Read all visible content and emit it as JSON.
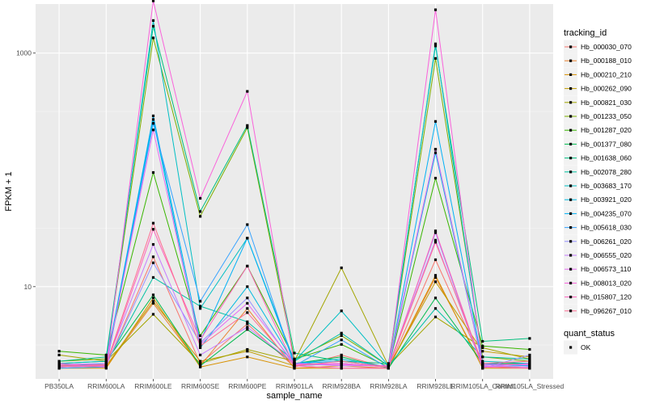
{
  "chart_data": {
    "type": "line",
    "xlabel": "sample_name",
    "ylabel": "FPKM + 1",
    "y_scale": "log10",
    "ylim": [
      1.7,
      3000
    ],
    "yticks": [
      10,
      1000
    ],
    "ytick_labels": [
      "10",
      "1000"
    ],
    "grid": true,
    "legend_placement": "right",
    "categories": [
      "PB350LA",
      "RRIM600LA",
      "RRIM600LE",
      "RRIM600SE",
      "RRIM600PE",
      "RRIM901LA",
      "RRIM928BA",
      "RRIM928LA",
      "RRIM928LE",
      "RRIM105LA_Control",
      "RRIM105LA_Stressed"
    ],
    "legend_title": "tracking_id",
    "series": [
      {
        "name": "Hb_000030_070",
        "color": "#F8766D",
        "values": [
          2.05,
          2.1,
          18,
          2.2,
          4.8,
          2.05,
          2.6,
          2.0,
          17,
          2.2,
          2.15
        ]
      },
      {
        "name": "Hb_000188_010",
        "color": "#EA8331",
        "values": [
          2.1,
          2.05,
          7.2,
          2.1,
          6.5,
          2.0,
          2.1,
          2.0,
          12,
          2.1,
          2.0
        ]
      },
      {
        "name": "Hb_000210_210",
        "color": "#D89000",
        "values": [
          2.0,
          2.0,
          8.0,
          2.05,
          2.5,
          2.0,
          2.0,
          2.0,
          12.5,
          2.0,
          2.0
        ]
      },
      {
        "name": "Hb_000262_090",
        "color": "#C09B00",
        "values": [
          2.15,
          2.1,
          7.5,
          2.3,
          2.8,
          2.1,
          2.2,
          2.05,
          11,
          2.8,
          2.5
        ]
      },
      {
        "name": "Hb_000821_030",
        "color": "#A3A500",
        "values": [
          2.6,
          2.3,
          5.8,
          2.2,
          2.9,
          2.3,
          14.5,
          2.1,
          5.5,
          3.0,
          2.4
        ]
      },
      {
        "name": "Hb_001233_050",
        "color": "#7CAE00",
        "values": [
          2.3,
          2.4,
          1350,
          40,
          230,
          2.4,
          3.8,
          2.1,
          900,
          2.5,
          2.3
        ]
      },
      {
        "name": "Hb_001287_020",
        "color": "#39B600",
        "values": [
          2.8,
          2.6,
          95,
          3.8,
          15,
          2.4,
          3.2,
          2.05,
          85,
          3.1,
          2.9
        ]
      },
      {
        "name": "Hb_001377_080",
        "color": "#00BB4E",
        "values": [
          2.2,
          2.3,
          8.5,
          2.1,
          4.3,
          2.2,
          2.5,
          2.0,
          8.0,
          2.2,
          2.2
        ]
      },
      {
        "name": "Hb_001638_060",
        "color": "#00BF7D",
        "values": [
          2.3,
          2.5,
          1700,
          44,
          240,
          2.7,
          2.3,
          2.2,
          1150,
          3.4,
          3.6
        ]
      },
      {
        "name": "Hb_002078_280",
        "color": "#00C1A3",
        "values": [
          2.1,
          2.2,
          12,
          6.8,
          5.0,
          2.3,
          4.0,
          2.1,
          6.5,
          2.5,
          2.4
        ]
      },
      {
        "name": "Hb_003683_170",
        "color": "#00BFC4",
        "values": [
          2.2,
          2.3,
          1900,
          6.5,
          26,
          2.3,
          6.2,
          2.1,
          1200,
          2.3,
          2.2
        ]
      },
      {
        "name": "Hb_003921_020",
        "color": "#00BAE0",
        "values": [
          2.05,
          2.1,
          270,
          3.0,
          10,
          2.2,
          2.4,
          2.05,
          140,
          2.1,
          2.05
        ]
      },
      {
        "name": "Hb_004235_070",
        "color": "#00B0F6",
        "values": [
          2.1,
          2.2,
          290,
          3.4,
          26,
          2.2,
          2.3,
          2.05,
          260,
          2.2,
          2.1
        ]
      },
      {
        "name": "Hb_005618_030",
        "color": "#35A2FF",
        "values": [
          2.0,
          2.05,
          250,
          7.5,
          34,
          2.1,
          3.5,
          2.0,
          150,
          2.15,
          2.1
        ]
      },
      {
        "name": "Hb_006261_020",
        "color": "#9590FF",
        "values": [
          2.1,
          2.1,
          16,
          3.3,
          8.0,
          2.1,
          2.2,
          2.05,
          29,
          2.0,
          2.6
        ]
      },
      {
        "name": "Hb_006555_020",
        "color": "#C77CFF",
        "values": [
          2.15,
          2.2,
          23,
          2.6,
          4.5,
          2.2,
          2.1,
          2.1,
          25,
          2.05,
          2.2
        ]
      },
      {
        "name": "Hb_006573_110",
        "color": "#E76BF3",
        "values": [
          2.1,
          2.15,
          220,
          3.2,
          7.2,
          2.2,
          2.15,
          2.1,
          150,
          2.1,
          2.05
        ]
      },
      {
        "name": "Hb_008013_020",
        "color": "#FA62DB",
        "values": [
          2.2,
          2.05,
          2800,
          57,
          470,
          2.15,
          2.2,
          2.05,
          2350,
          2.15,
          2.15
        ]
      },
      {
        "name": "Hb_015807_120",
        "color": "#FF62BC",
        "values": [
          2.05,
          2.1,
          31,
          3.5,
          15,
          2.1,
          2.0,
          2.0,
          30,
          2.05,
          2.0
        ]
      },
      {
        "name": "Hb_096267_010",
        "color": "#FF6C91",
        "values": [
          2.1,
          2.15,
          35,
          3.1,
          6.0,
          2.1,
          2.3,
          2.05,
          24,
          2.2,
          2.3
        ]
      }
    ],
    "shape_legend_title": "quant_status",
    "shape_legend_items": [
      "OK"
    ]
  }
}
